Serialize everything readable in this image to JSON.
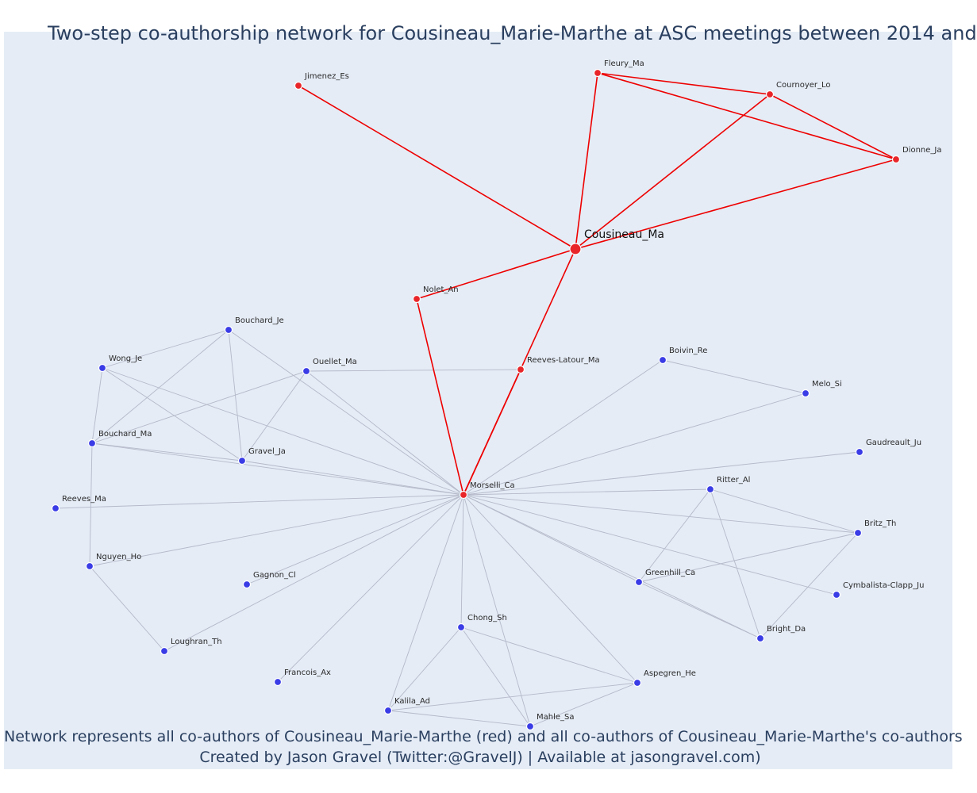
{
  "title": "Two-step co-authorship network for Cousineau_Marie-Marthe at ASC meetings between 2014 and",
  "footer": {
    "line1": "Network represents all co-authors of Cousineau_Marie-Marthe (red) and all co-authors of Cousineau_Marie-Marthe's co-authors",
    "line2": "Created by Jason Gravel (Twitter:@GravelJ) | Available at jasongravel.com)"
  },
  "colors": {
    "ego_network": "#ee0000",
    "node_red": "#e8262a",
    "node_blue": "#3a3ce6",
    "edge_grey": "#b5b9c9",
    "background": "#e5ecf6"
  },
  "nodes": [
    {
      "id": "Cousineau_Ma",
      "group": "red",
      "ego": true
    },
    {
      "id": "Jimenez_Es",
      "group": "red"
    },
    {
      "id": "Fleury_Ma",
      "group": "red"
    },
    {
      "id": "Cournoyer_Lo",
      "group": "red"
    },
    {
      "id": "Dionne_Ja",
      "group": "red"
    },
    {
      "id": "Nolet_An",
      "group": "red"
    },
    {
      "id": "Reeves-Latour_Ma",
      "group": "red"
    },
    {
      "id": "Morselli_Ca",
      "group": "red"
    },
    {
      "id": "Bouchard_Je",
      "group": "blue"
    },
    {
      "id": "Wong_Je",
      "group": "blue"
    },
    {
      "id": "Ouellet_Ma",
      "group": "blue"
    },
    {
      "id": "Bouchard_Ma",
      "group": "blue"
    },
    {
      "id": "Gravel_Ja",
      "group": "blue"
    },
    {
      "id": "Reeves_Ma",
      "group": "blue"
    },
    {
      "id": "Nguyen_Ho",
      "group": "blue"
    },
    {
      "id": "Gagnon_Cl",
      "group": "blue"
    },
    {
      "id": "Loughran_Th",
      "group": "blue"
    },
    {
      "id": "Francois_Ax",
      "group": "blue"
    },
    {
      "id": "Boivin_Re",
      "group": "blue"
    },
    {
      "id": "Melo_Si",
      "group": "blue"
    },
    {
      "id": "Gaudreault_Ju",
      "group": "blue"
    },
    {
      "id": "Ritter_Al",
      "group": "blue"
    },
    {
      "id": "Britz_Th",
      "group": "blue"
    },
    {
      "id": "Greenhill_Ca",
      "group": "blue"
    },
    {
      "id": "Cymbalista-Clapp_Ju",
      "group": "blue"
    },
    {
      "id": "Bright_Da",
      "group": "blue"
    },
    {
      "id": "Chong_Sh",
      "group": "blue"
    },
    {
      "id": "Aspegren_He",
      "group": "blue"
    },
    {
      "id": "Kalila_Ad",
      "group": "blue"
    },
    {
      "id": "Mahle_Sa",
      "group": "blue"
    }
  ],
  "edges": [
    {
      "source": "Cousineau_Ma",
      "target": "Jimenez_Es",
      "group": "red"
    },
    {
      "source": "Cousineau_Ma",
      "target": "Fleury_Ma",
      "group": "red"
    },
    {
      "source": "Cousineau_Ma",
      "target": "Cournoyer_Lo",
      "group": "red"
    },
    {
      "source": "Cousineau_Ma",
      "target": "Dionne_Ja",
      "group": "red"
    },
    {
      "source": "Cousineau_Ma",
      "target": "Nolet_An",
      "group": "red"
    },
    {
      "source": "Cousineau_Ma",
      "target": "Morselli_Ca",
      "group": "red"
    },
    {
      "source": "Fleury_Ma",
      "target": "Cournoyer_Lo",
      "group": "red"
    },
    {
      "source": "Fleury_Ma",
      "target": "Dionne_Ja",
      "group": "red"
    },
    {
      "source": "Cournoyer_Lo",
      "target": "Dionne_Ja",
      "group": "red"
    },
    {
      "source": "Nolet_An",
      "target": "Morselli_Ca",
      "group": "red"
    },
    {
      "source": "Reeves-Latour_Ma",
      "target": "Ouellet_Ma",
      "group": "grey"
    },
    {
      "source": "Bouchard_Je",
      "target": "Wong_Je",
      "group": "grey"
    },
    {
      "source": "Bouchard_Je",
      "target": "Bouchard_Ma",
      "group": "grey"
    },
    {
      "source": "Bouchard_Je",
      "target": "Gravel_Ja",
      "group": "grey"
    },
    {
      "source": "Bouchard_Je",
      "target": "Morselli_Ca",
      "group": "grey"
    },
    {
      "source": "Wong_Je",
      "target": "Bouchard_Ma",
      "group": "grey"
    },
    {
      "source": "Wong_Je",
      "target": "Gravel_Ja",
      "group": "grey"
    },
    {
      "source": "Wong_Je",
      "target": "Morselli_Ca",
      "group": "grey"
    },
    {
      "source": "Ouellet_Ma",
      "target": "Bouchard_Ma",
      "group": "grey"
    },
    {
      "source": "Ouellet_Ma",
      "target": "Gravel_Ja",
      "group": "grey"
    },
    {
      "source": "Ouellet_Ma",
      "target": "Morselli_Ca",
      "group": "grey"
    },
    {
      "source": "Bouchard_Ma",
      "target": "Gravel_Ja",
      "group": "grey"
    },
    {
      "source": "Bouchard_Ma",
      "target": "Morselli_Ca",
      "group": "grey"
    },
    {
      "source": "Bouchard_Ma",
      "target": "Nguyen_Ho",
      "group": "grey"
    },
    {
      "source": "Gravel_Ja",
      "target": "Morselli_Ca",
      "group": "grey"
    },
    {
      "source": "Reeves_Ma",
      "target": "Morselli_Ca",
      "group": "grey"
    },
    {
      "source": "Nguyen_Ho",
      "target": "Morselli_Ca",
      "group": "grey"
    },
    {
      "source": "Nguyen_Ho",
      "target": "Loughran_Th",
      "group": "grey"
    },
    {
      "source": "Gagnon_Cl",
      "target": "Morselli_Ca",
      "group": "grey"
    },
    {
      "source": "Loughran_Th",
      "target": "Morselli_Ca",
      "group": "grey"
    },
    {
      "source": "Francois_Ax",
      "target": "Morselli_Ca",
      "group": "grey"
    },
    {
      "source": "Boivin_Re",
      "target": "Morselli_Ca",
      "group": "grey"
    },
    {
      "source": "Boivin_Re",
      "target": "Melo_Si",
      "group": "grey"
    },
    {
      "source": "Melo_Si",
      "target": "Morselli_Ca",
      "group": "grey"
    },
    {
      "source": "Gaudreault_Ju",
      "target": "Morselli_Ca",
      "group": "grey"
    },
    {
      "source": "Ritter_Al",
      "target": "Morselli_Ca",
      "group": "grey"
    },
    {
      "source": "Ritter_Al",
      "target": "Britz_Th",
      "group": "grey"
    },
    {
      "source": "Ritter_Al",
      "target": "Greenhill_Ca",
      "group": "grey"
    },
    {
      "source": "Ritter_Al",
      "target": "Bright_Da",
      "group": "grey"
    },
    {
      "source": "Britz_Th",
      "target": "Morselli_Ca",
      "group": "grey"
    },
    {
      "source": "Britz_Th",
      "target": "Greenhill_Ca",
      "group": "grey"
    },
    {
      "source": "Britz_Th",
      "target": "Bright_Da",
      "group": "grey"
    },
    {
      "source": "Greenhill_Ca",
      "target": "Morselli_Ca",
      "group": "grey"
    },
    {
      "source": "Greenhill_Ca",
      "target": "Bright_Da",
      "group": "grey"
    },
    {
      "source": "Bright_Da",
      "target": "Morselli_Ca",
      "group": "grey"
    },
    {
      "source": "Cymbalista-Clapp_Ju",
      "target": "Morselli_Ca",
      "group": "grey"
    },
    {
      "source": "Chong_Sh",
      "target": "Morselli_Ca",
      "group": "grey"
    },
    {
      "source": "Chong_Sh",
      "target": "Aspegren_He",
      "group": "grey"
    },
    {
      "source": "Chong_Sh",
      "target": "Kalila_Ad",
      "group": "grey"
    },
    {
      "source": "Chong_Sh",
      "target": "Mahle_Sa",
      "group": "grey"
    },
    {
      "source": "Aspegren_He",
      "target": "Morselli_Ca",
      "group": "grey"
    },
    {
      "source": "Aspegren_He",
      "target": "Kalila_Ad",
      "group": "grey"
    },
    {
      "source": "Aspegren_He",
      "target": "Mahle_Sa",
      "group": "grey"
    },
    {
      "source": "Kalila_Ad",
      "target": "Morselli_Ca",
      "group": "grey"
    },
    {
      "source": "Kalila_Ad",
      "target": "Mahle_Sa",
      "group": "grey"
    },
    {
      "source": "Mahle_Sa",
      "target": "Morselli_Ca",
      "group": "grey"
    },
    {
      "source": "Reeves-Latour_Ma",
      "target": "Morselli_Ca",
      "group": "red"
    }
  ]
}
